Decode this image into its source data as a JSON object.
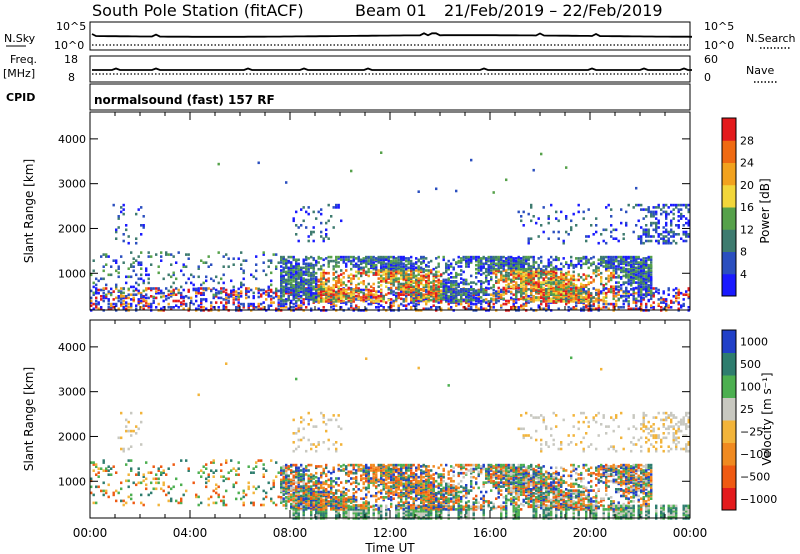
{
  "header": {
    "station": "South Pole Station (fitACF)",
    "beam": "Beam 01",
    "date_range": "21/Feb/2019 – 22/Feb/2019"
  },
  "panels": {
    "nsky": {
      "label": "N.Sky",
      "left_top": "10^5",
      "left_bottom": "10^0",
      "right_top": "10^5",
      "right_bottom": "10^0",
      "right_label": "N.Search"
    },
    "freq": {
      "label_line1": "Freq.",
      "label_line2": "[MHz]",
      "left_top": "18",
      "left_bottom": "8",
      "right_top": "60",
      "right_bottom": "0",
      "right_label": "Nave"
    },
    "cpid": {
      "label": "CPID",
      "value": "normalsound (fast) 157 RF"
    }
  },
  "colors": {
    "power_scale": [
      "#1a1aff",
      "#2b4fbf",
      "#3e7b6f",
      "#56a14a",
      "#f2d63a",
      "#f2a21e",
      "#ef6a12",
      "#e31a1c"
    ],
    "velocity_scale": [
      "#2140c8",
      "#2e7d6e",
      "#4caf50",
      "#c8c8c0",
      "#f2b43a",
      "#f08a20",
      "#ef5a12",
      "#e31a1c"
    ]
  },
  "chart_data": [
    {
      "type": "heatmap",
      "title": "",
      "ylabel": "Slant Range [km]",
      "xlabel": "Time UT",
      "x_ticks": [
        "00:00",
        "04:00",
        "08:00",
        "12:00",
        "16:00",
        "20:00",
        "00:00"
      ],
      "y_ticks": [
        1000,
        2000,
        3000,
        4000
      ],
      "ylim": [
        180,
        4600
      ],
      "xlim_hours": [
        0,
        24
      ],
      "colorbar": {
        "label": "Power [dB]",
        "ticks": [
          "4",
          "8",
          "12",
          "16",
          "20",
          "24",
          "28"
        ]
      },
      "regions": [
        {
          "x": [
            0.0,
            24.0
          ],
          "y": [
            200,
            700
          ],
          "value": "scatter"
        },
        {
          "x": [
            8.0,
            22.0
          ],
          "y": [
            400,
            1400
          ],
          "value": "strong"
        },
        {
          "x": [
            0.8,
            2.0
          ],
          "y": [
            1700,
            2500
          ],
          "value": "weak"
        },
        {
          "x": [
            17.0,
            24.0
          ],
          "y": [
            1800,
            2600
          ],
          "value": "weak"
        }
      ]
    },
    {
      "type": "heatmap",
      "title": "",
      "ylabel": "Slant Range [km]",
      "xlabel": "Time UT",
      "x_ticks": [
        "00:00",
        "04:00",
        "08:00",
        "12:00",
        "16:00",
        "20:00",
        "00:00"
      ],
      "y_ticks": [
        1000,
        2000,
        3000,
        4000
      ],
      "ylim": [
        180,
        4600
      ],
      "xlim_hours": [
        0,
        24
      ],
      "colorbar": {
        "label": "Velocity [m s⁻¹]",
        "ticks": [
          "1000",
          "500",
          "100",
          "25",
          "−25",
          "−100",
          "−500",
          "−1000"
        ]
      },
      "regions": [
        {
          "x": [
            8.0,
            14.0
          ],
          "y": [
            300,
            1300
          ],
          "value": "negative"
        },
        {
          "x": [
            14.0,
            22.0
          ],
          "y": [
            300,
            1300
          ],
          "value": "mixed"
        },
        {
          "x": [
            18.0,
            24.0
          ],
          "y": [
            1700,
            2600
          ],
          "value": "ground"
        }
      ]
    }
  ]
}
